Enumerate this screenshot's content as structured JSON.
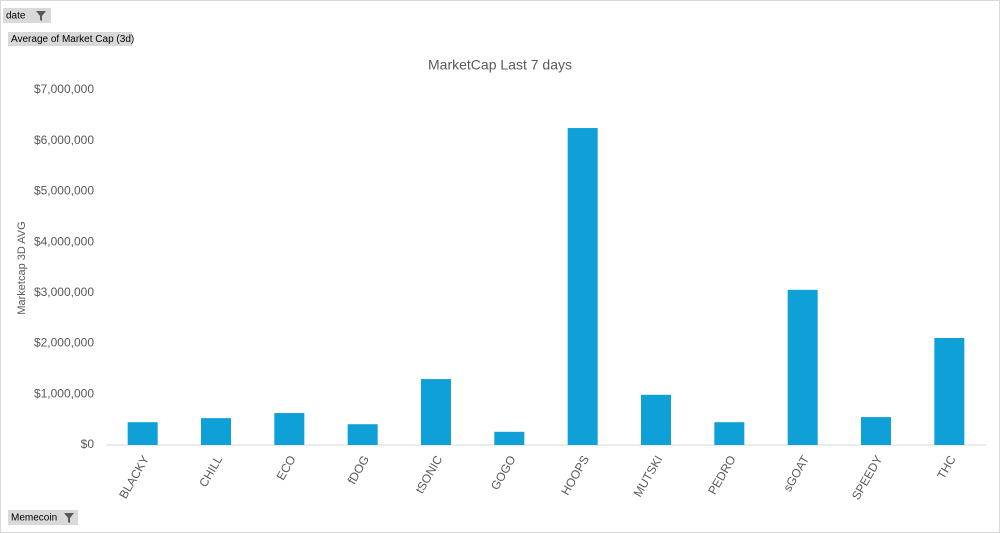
{
  "field_buttons": {
    "filter": "date",
    "values": "Average of Market Cap (3d)",
    "axis": "Memecoin"
  },
  "chart_data": {
    "type": "bar",
    "title": "MarketCap Last 7 days",
    "y_label": "Marketcap 3D AVG",
    "categories": [
      "BLACKY",
      "CHILL",
      "ECO",
      "fDOG",
      "tSONIC",
      "GOGO",
      "HOOPS",
      "MUTSKI",
      "PEDRO",
      "sGOAT",
      "SPEEDY",
      "THC"
    ],
    "values": [
      450000,
      530000,
      630000,
      410000,
      1300000,
      260000,
      6250000,
      990000,
      450000,
      3060000,
      550000,
      2110000
    ],
    "color": "#10a0d8",
    "ylim": [
      0,
      7000000
    ],
    "yticks": [
      {
        "value": 0,
        "label": "$0"
      },
      {
        "value": 1000000,
        "label": "$1,000,000"
      },
      {
        "value": 2000000,
        "label": "$2,000,000"
      },
      {
        "value": 3000000,
        "label": "$3,000,000"
      },
      {
        "value": 4000000,
        "label": "$4,000,000"
      },
      {
        "value": 5000000,
        "label": "$5,000,000"
      },
      {
        "value": 6000000,
        "label": "$6,000,000"
      },
      {
        "value": 7000000,
        "label": "$7,000,000"
      }
    ],
    "grid": false
  }
}
